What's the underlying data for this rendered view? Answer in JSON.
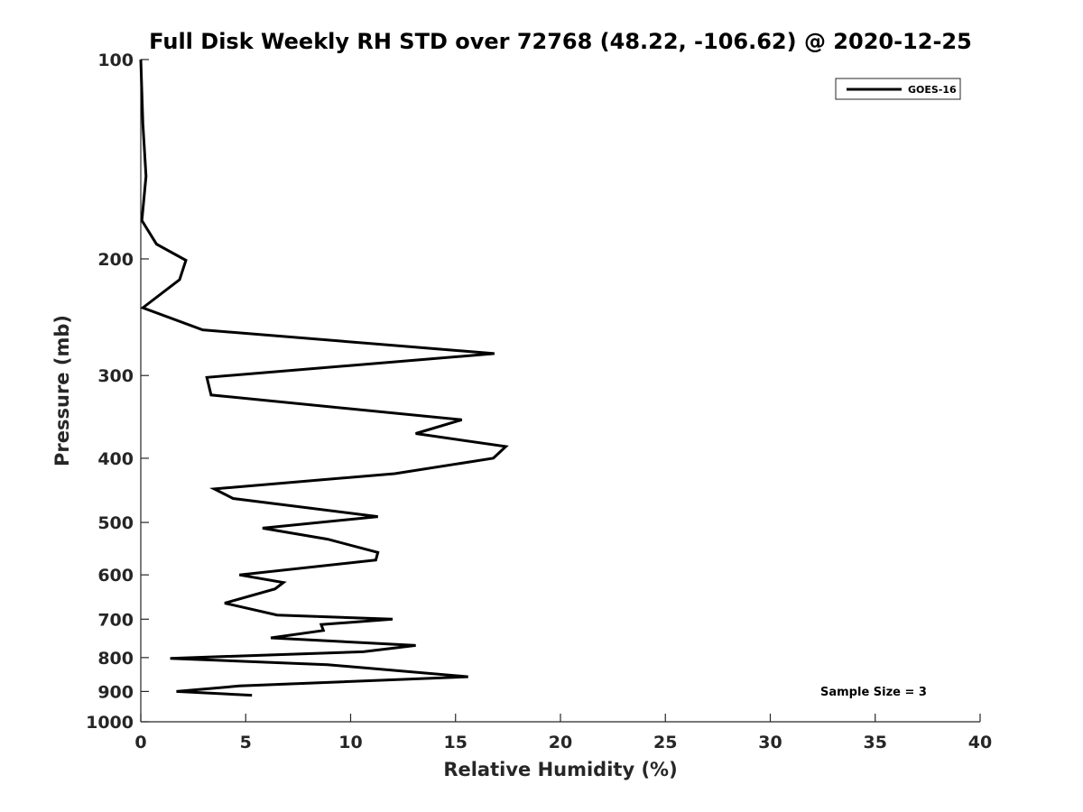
{
  "chart_data": {
    "type": "line",
    "title": "Full Disk Weekly RH STD over 72768 (48.22, -106.62) @ 2020-12-25",
    "xlabel": "Relative Humidity (%)",
    "ylabel": "Pressure (mb)",
    "xlim": [
      0,
      40
    ],
    "ylim": [
      100,
      1000
    ],
    "y_scale": "log",
    "y_reversed": true,
    "x_ticks": [
      0,
      5,
      10,
      15,
      20,
      25,
      30,
      35,
      40
    ],
    "y_ticks": [
      100,
      200,
      300,
      400,
      500,
      600,
      700,
      800,
      900,
      1000
    ],
    "grid": false,
    "legend_position": "top-right",
    "annotation": "Sample Size = 3",
    "series": [
      {
        "name": "GOES-16",
        "color": "#000000",
        "points": [
          [
            0.0,
            100
          ],
          [
            0.1,
            125
          ],
          [
            0.25,
            150
          ],
          [
            0.05,
            175
          ],
          [
            0.75,
            190
          ],
          [
            2.15,
            201
          ],
          [
            1.85,
            215
          ],
          [
            0.1,
            237
          ],
          [
            2.95,
            256
          ],
          [
            16.85,
            278
          ],
          [
            3.15,
            302
          ],
          [
            3.35,
            321
          ],
          [
            15.3,
            350
          ],
          [
            13.1,
            367
          ],
          [
            17.4,
            384
          ],
          [
            16.8,
            400
          ],
          [
            12.1,
            422
          ],
          [
            3.5,
            445
          ],
          [
            4.4,
            460
          ],
          [
            11.3,
            490
          ],
          [
            5.8,
            510
          ],
          [
            8.9,
            530
          ],
          [
            11.3,
            555
          ],
          [
            11.2,
            570
          ],
          [
            4.7,
            600
          ],
          [
            6.8,
            616
          ],
          [
            6.4,
            630
          ],
          [
            4.0,
            662
          ],
          [
            6.5,
            690
          ],
          [
            12.0,
            700
          ],
          [
            8.6,
            713
          ],
          [
            8.7,
            728
          ],
          [
            6.2,
            747
          ],
          [
            13.1,
            767
          ],
          [
            10.6,
            784
          ],
          [
            1.4,
            802
          ],
          [
            8.9,
            820
          ],
          [
            15.6,
            855
          ],
          [
            4.7,
            883
          ],
          [
            1.7,
            900
          ],
          [
            5.3,
            912
          ]
        ]
      }
    ]
  }
}
